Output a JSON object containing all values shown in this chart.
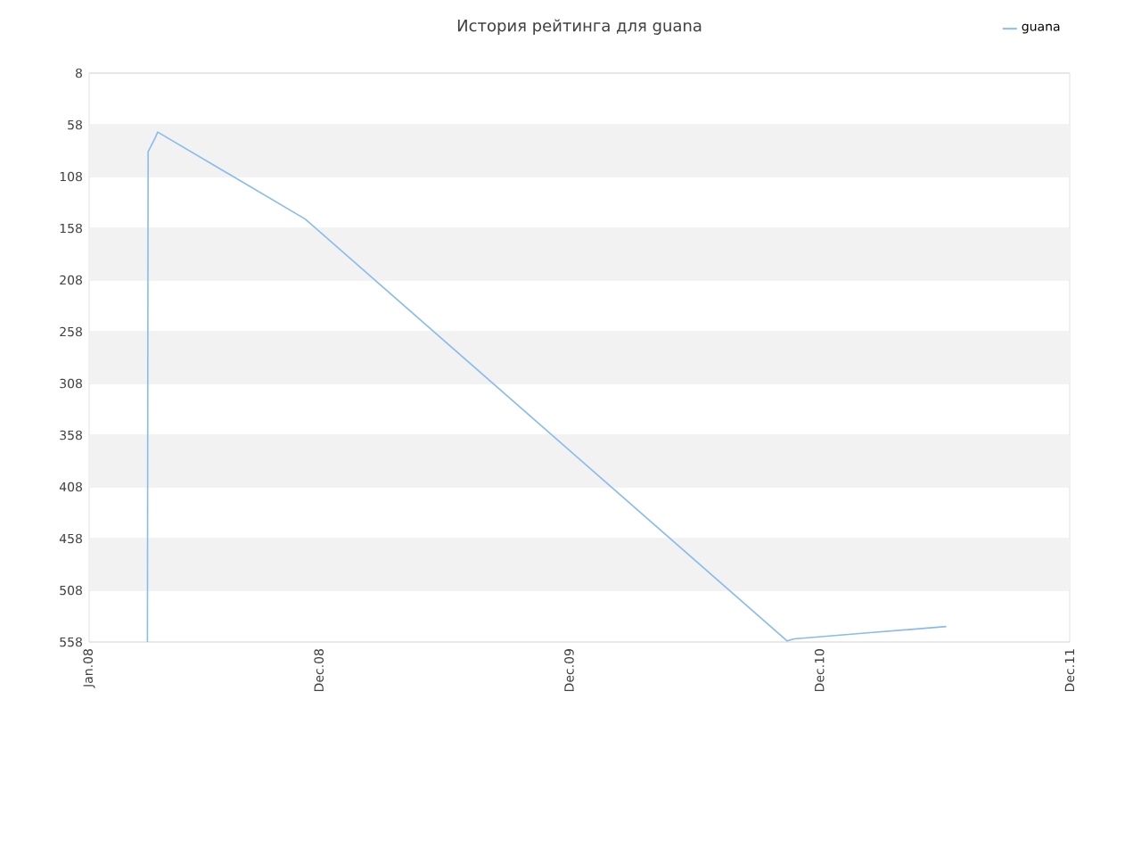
{
  "chart_data": {
    "type": "line",
    "title": "История рейтинга для guana",
    "x": [
      "2008-03-26",
      "2008-03-27",
      "2008-04-06",
      "2008-04-10",
      "2008-11-11",
      "2010-10-15",
      "2010-10-25",
      "2011-02-13",
      "2011-06-04"
    ],
    "series": [
      {
        "name": "guana",
        "color": "#88bbee",
        "values": [
          558,
          84,
          71,
          65,
          149,
          557,
          555,
          549,
          543
        ]
      }
    ],
    "xlim": [
      "2008-01-01",
      "2011-12-01"
    ],
    "xticks": [
      {
        "value": "2008-01-01",
        "label": "Jan.08"
      },
      {
        "value": "2008-12-01",
        "label": "Dec.08"
      },
      {
        "value": "2009-12-01",
        "label": "Dec.09"
      },
      {
        "value": "2010-12-01",
        "label": "Dec.10"
      },
      {
        "value": "2011-12-01",
        "label": "Dec.11"
      }
    ],
    "ylim": [
      558,
      8
    ],
    "yticks": [
      8,
      58,
      108,
      158,
      208,
      258,
      308,
      358,
      408,
      458,
      508,
      558
    ],
    "grid": "y",
    "legend": "top right",
    "marker": "none",
    "line_style": "solid"
  }
}
